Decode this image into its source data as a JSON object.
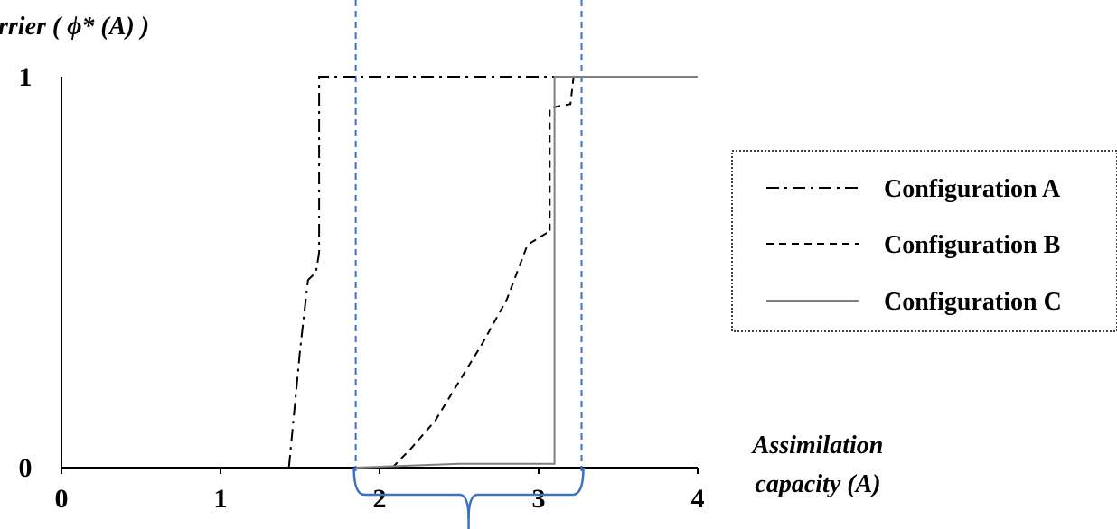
{
  "chart_data": {
    "type": "line",
    "ylabel": "rrier ( ϕ* (A) )",
    "xlabel_line1": "Assimilation",
    "xlabel_line2": "capacity (A)",
    "xlim": [
      0,
      4
    ],
    "ylim": [
      0,
      1
    ],
    "x_ticks": [
      "0",
      "1",
      "2",
      "3",
      "4"
    ],
    "y_ticks": [
      "0",
      "1"
    ],
    "grid": false,
    "legend_position": "right",
    "series": [
      {
        "name": "Configuration A",
        "style": "dashdot",
        "color": "#000000",
        "points": [
          [
            1.43,
            0
          ],
          [
            1.5,
            0.3
          ],
          [
            1.55,
            0.48
          ],
          [
            1.6,
            0.5
          ],
          [
            1.62,
            0.55
          ],
          [
            1.62,
            1
          ],
          [
            4,
            1
          ]
        ]
      },
      {
        "name": "Configuration B",
        "style": "dashed",
        "color": "#000000",
        "points": [
          [
            2.08,
            0
          ],
          [
            2.2,
            0.05
          ],
          [
            2.35,
            0.12
          ],
          [
            2.5,
            0.22
          ],
          [
            2.65,
            0.32
          ],
          [
            2.8,
            0.43
          ],
          [
            2.93,
            0.57
          ],
          [
            3.05,
            0.6
          ],
          [
            3.07,
            0.6
          ],
          [
            3.07,
            0.92
          ],
          [
            3.2,
            0.93
          ],
          [
            3.22,
            1
          ],
          [
            4,
            1
          ]
        ]
      },
      {
        "name": "Configuration C",
        "style": "solid",
        "color": "#808080",
        "points": [
          [
            1.85,
            0
          ],
          [
            2.5,
            0.01
          ],
          [
            3.1,
            0.01
          ],
          [
            3.1,
            1
          ],
          [
            4,
            1
          ]
        ]
      }
    ],
    "highlight_region": {
      "x_start": 1.85,
      "x_end": 3.27,
      "color": "#3a72c4"
    }
  }
}
